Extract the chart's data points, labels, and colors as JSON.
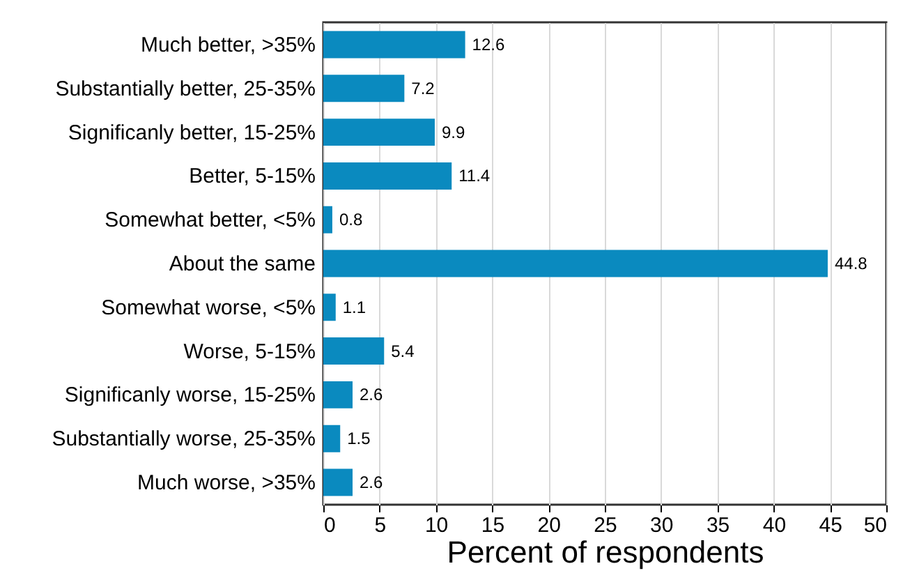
{
  "chart_data": {
    "type": "bar",
    "orientation": "horizontal",
    "xlabel": "Percent of respondents",
    "categories": [
      "Much better, >35%",
      "Substantially better, 25-35%",
      "Significanly better, 15-25%",
      "Better, 5-15%",
      "Somewhat better, <5%",
      "About the same",
      "Somewhat worse, <5%",
      "Worse, 5-15%",
      "Significanly worse, 15-25%",
      "Substantially worse, 25-35%",
      "Much worse, >35%"
    ],
    "values": [
      12.6,
      7.2,
      9.9,
      11.4,
      0.8,
      44.8,
      1.1,
      5.4,
      2.6,
      1.5,
      2.6
    ],
    "color": "#0a8abf",
    "xlim": [
      0,
      50
    ],
    "xticks": [
      0,
      5,
      10,
      15,
      20,
      25,
      30,
      35,
      40,
      45,
      50
    ],
    "grid": "x",
    "data_labels": true
  }
}
